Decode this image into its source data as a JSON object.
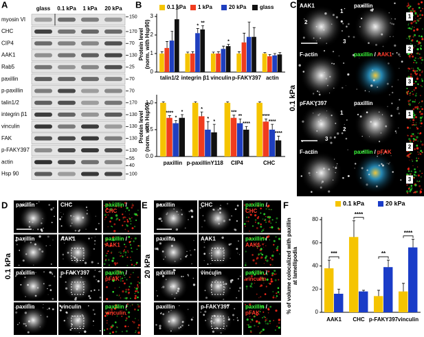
{
  "panel_labels": [
    "A",
    "B",
    "C",
    "D",
    "E",
    "F"
  ],
  "blot": {
    "lanes": [
      "glass",
      "0.1 kPa",
      "1 kPa",
      "20 kPa"
    ],
    "proteins": [
      "myosin VI",
      "CHC",
      "CIP4",
      "AAK1",
      "Rab5",
      "paxillin",
      "p-paxillin",
      "talin1/2",
      "integrin β1",
      "vinculin",
      "FAK",
      "p-FAKY397",
      "actin",
      "Hsp 90"
    ],
    "markers": [
      150,
      170,
      70,
      130,
      25,
      70,
      70,
      170,
      130,
      130,
      130,
      130,
      55,
      40,
      100
    ]
  },
  "chart_data": [
    {
      "type": "bar",
      "legend": "top",
      "ylabel": [
        "Protein level",
        "(norm. with Hsp90)"
      ],
      "categories": [
        "talin1/2",
        "integrin β1",
        "vinculin",
        "p-FAKY397",
        "actin"
      ],
      "ylim": [
        0,
        3
      ],
      "yticks": [
        0,
        1,
        2,
        3
      ],
      "series": [
        {
          "name": "0.1 kPa",
          "color": "#f5c400",
          "values": [
            1.0,
            1.0,
            1.0,
            1.0,
            1.0
          ],
          "errors": [
            0.1,
            0.08,
            0.08,
            0.1,
            0.05
          ],
          "stars": [
            null,
            null,
            null,
            null,
            null
          ]
        },
        {
          "name": "1 kPa",
          "color": "#f03c1e",
          "values": [
            1.3,
            1.0,
            1.0,
            1.6,
            0.85
          ],
          "errors": [
            0.35,
            0.1,
            0.1,
            0.5,
            0.1
          ],
          "stars": [
            null,
            null,
            null,
            null,
            null
          ]
        },
        {
          "name": "20 kPa",
          "color": "#1f3fbf",
          "values": [
            1.7,
            2.1,
            1.25,
            1.9,
            0.9
          ],
          "errors": [
            0.5,
            0.25,
            0.15,
            0.8,
            0.1
          ],
          "stars": [
            null,
            "*",
            null,
            null,
            null
          ]
        },
        {
          "name": "glass",
          "color": "#111111",
          "values": [
            2.85,
            2.3,
            1.4,
            1.9,
            0.95
          ],
          "errors": [
            0.55,
            0.2,
            0.1,
            0.5,
            0.1
          ],
          "stars": [
            "*",
            "**",
            "*",
            null,
            null
          ]
        }
      ]
    },
    {
      "type": "bar",
      "ylabel": [
        "Protein level",
        "(norm. with Hsp90)"
      ],
      "categories": [
        "paxillin",
        "p-paxillinY118",
        "CIP4",
        "CHC"
      ],
      "ylim": [
        0,
        1.1
      ],
      "yticks": [
        {
          "value": 0,
          "label": "0.0"
        },
        {
          "value": 0.5,
          "label": "0.5"
        },
        {
          "value": 1,
          "label": "1.0"
        }
      ],
      "series": [
        {
          "color": "#f5c400",
          "values": [
            1.0,
            1.0,
            1.0,
            1.0
          ],
          "errors": [
            0.02,
            0.02,
            0.02,
            0.02
          ],
          "stars": [
            null,
            null,
            null,
            null
          ]
        },
        {
          "color": "#f03c1e",
          "values": [
            0.72,
            0.75,
            0.72,
            0.65
          ],
          "errors": [
            0.04,
            0.08,
            0.05,
            0.05
          ],
          "stars": [
            "****",
            "*",
            "***",
            "****"
          ]
        },
        {
          "color": "#1f3fbf",
          "values": [
            0.62,
            0.5,
            0.62,
            0.5
          ],
          "errors": [
            0.05,
            0.15,
            0.08,
            0.1
          ],
          "stars": [
            "*",
            "*",
            "**",
            "****"
          ]
        },
        {
          "color": "#111111",
          "values": [
            0.72,
            0.45,
            0.5,
            0.3
          ],
          "errors": [
            0.06,
            0.15,
            0.06,
            0.08
          ],
          "stars": [
            "*",
            "*",
            "****",
            "****"
          ]
        }
      ]
    },
    {
      "type": "bar",
      "legend": "top",
      "ylabel": [
        "% of volume colocalized with paxillin",
        "at lamellipodia"
      ],
      "categories": [
        "AAK1",
        "CHC",
        "p-FAKY397",
        "vinculin"
      ],
      "ylim": [
        0,
        80
      ],
      "yticks": [
        0,
        20,
        40,
        60,
        80
      ],
      "significance": [
        "***",
        "****",
        "**",
        "****"
      ],
      "series": [
        {
          "name": "0.1 kPa",
          "color": "#f5c400",
          "values": [
            38,
            65,
            14,
            18
          ],
          "errors": [
            7,
            14,
            5,
            7
          ]
        },
        {
          "name": "20 kPa",
          "color": "#1a3cc8",
          "values": [
            16,
            18,
            39,
            56
          ],
          "errors": [
            4,
            1,
            6,
            7
          ]
        }
      ]
    }
  ],
  "micrographs": {
    "C": {
      "condition": "0.1 kPa",
      "zoom_labels": [
        "1",
        "2",
        "3"
      ],
      "rows": [
        [
          "AAK1",
          "paxillin"
        ],
        [
          "F-actin",
          {
            "green": "paxillin",
            "separator": "/",
            "red": "AAK1"
          }
        ],
        [
          "pFAKY397",
          "paxillin"
        ],
        [
          "F-actin",
          {
            "green": "paxillin",
            "separator": "/",
            "red": "pFAK"
          }
        ]
      ]
    },
    "D": {
      "condition": "0.1 kPa",
      "rows": [
        [
          "paxillin",
          "CHC",
          {
            "green": "paxillin",
            "separator": "/",
            "red": "CHC"
          }
        ],
        [
          "paxillin",
          "AAK1",
          {
            "green": "paxillin",
            "separator": "/",
            "red": "AAK1"
          }
        ],
        [
          "paxillin",
          "p-FAKY397",
          {
            "green": "paxillin",
            "separator": "/",
            "red": "pFAK"
          }
        ],
        [
          "paxillin",
          "vinculin",
          {
            "green": "paxillin",
            "separator": "/",
            "red": "vinculin"
          }
        ]
      ]
    },
    "E": {
      "condition": "20 kPa",
      "rows": [
        [
          "paxillin",
          "CHC",
          {
            "green": "paxillin",
            "separator": "/",
            "red": "CHC"
          }
        ],
        [
          "paxillin",
          "AAK1",
          {
            "green": "paxillin",
            "separator": "/",
            "red": "AAK1"
          }
        ],
        [
          "paxillin",
          "vinculin",
          {
            "green": "paxillin",
            "separator": "/",
            "red": "vinculin"
          }
        ],
        [
          "paxillin",
          "p-FAKY397",
          {
            "green": "paxillin",
            "separator": "/",
            "red": "pFAK"
          }
        ]
      ]
    }
  }
}
